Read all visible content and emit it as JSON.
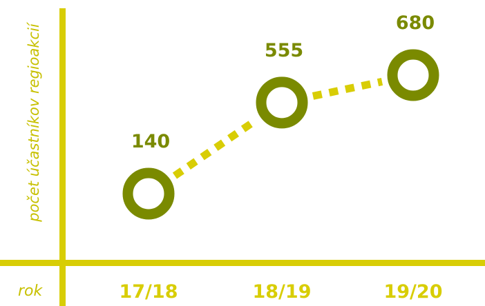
{
  "chart_data": {
    "type": "line",
    "categories": [
      "17/18",
      "18/19",
      "19/20"
    ],
    "values": [
      140,
      555,
      680
    ],
    "data_labels": [
      "140",
      "555",
      "680"
    ],
    "title": "",
    "xlabel": "rok",
    "ylabel": "počet účastníkov regioakcií",
    "ylim": [
      0,
      800
    ],
    "grid": false,
    "legend": "none",
    "colors": {
      "axis": "#d8cd05",
      "axis_label": "#c7c000",
      "marker": "#7a8a00",
      "line": "#d8cd05",
      "data_label": "#7a8a00"
    }
  }
}
